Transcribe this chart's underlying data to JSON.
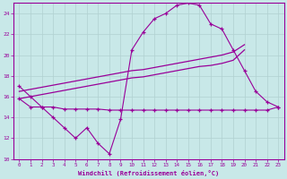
{
  "xlabel": "Windchill (Refroidissement éolien,°C)",
  "background_color": "#c8e8e8",
  "grid_color": "#b0d0d0",
  "line_color": "#990099",
  "main_x": [
    0,
    1,
    2,
    3,
    4,
    5,
    6,
    7,
    8,
    9,
    10,
    11,
    12,
    13,
    14,
    15,
    16,
    17,
    18,
    19,
    20,
    21,
    22,
    23
  ],
  "main_y": [
    17,
    16,
    15,
    14,
    13,
    12,
    13,
    11.5,
    10.5,
    13.8,
    20.5,
    22.2,
    23.5,
    24,
    24.8,
    25,
    24.8,
    23,
    22.5,
    20.5,
    18.5,
    16.5,
    15.5,
    15
  ],
  "flat_x": [
    0,
    1,
    2,
    3,
    4,
    5,
    6,
    7,
    8,
    9,
    10,
    11,
    12,
    13,
    14,
    15,
    16,
    17,
    18,
    19,
    20,
    21,
    22,
    23
  ],
  "flat_y": [
    15.8,
    15.0,
    15.0,
    15.0,
    14.8,
    14.8,
    14.8,
    14.8,
    14.7,
    14.7,
    14.7,
    14.7,
    14.7,
    14.7,
    14.7,
    14.7,
    14.7,
    14.7,
    14.7,
    14.7,
    14.7,
    14.7,
    14.7,
    15.0
  ],
  "diag1_x": [
    0,
    1,
    2,
    3,
    4,
    5,
    6,
    7,
    8,
    9,
    10,
    11,
    12,
    13,
    14,
    15,
    16,
    17,
    18,
    19,
    20
  ],
  "diag1_y": [
    15.8,
    16.0,
    16.2,
    16.4,
    16.6,
    16.8,
    17.0,
    17.2,
    17.4,
    17.6,
    17.8,
    17.9,
    18.1,
    18.3,
    18.5,
    18.7,
    18.9,
    19.0,
    19.2,
    19.5,
    20.5
  ],
  "diag2_x": [
    0,
    1,
    2,
    3,
    4,
    5,
    6,
    7,
    8,
    9,
    10,
    11,
    12,
    13,
    14,
    15,
    16,
    17,
    18,
    19,
    20
  ],
  "diag2_y": [
    16.5,
    16.7,
    16.9,
    17.1,
    17.3,
    17.5,
    17.7,
    17.9,
    18.1,
    18.3,
    18.5,
    18.6,
    18.8,
    19.0,
    19.2,
    19.4,
    19.6,
    19.8,
    20.0,
    20.3,
    21.0
  ],
  "ylim": [
    10,
    25
  ],
  "xlim": [
    -0.5,
    23.5
  ],
  "yticks": [
    10,
    12,
    14,
    16,
    18,
    20,
    22,
    24
  ],
  "xticks": [
    0,
    1,
    2,
    3,
    4,
    5,
    6,
    7,
    8,
    9,
    10,
    11,
    12,
    13,
    14,
    15,
    16,
    17,
    18,
    19,
    20,
    21,
    22,
    23
  ]
}
